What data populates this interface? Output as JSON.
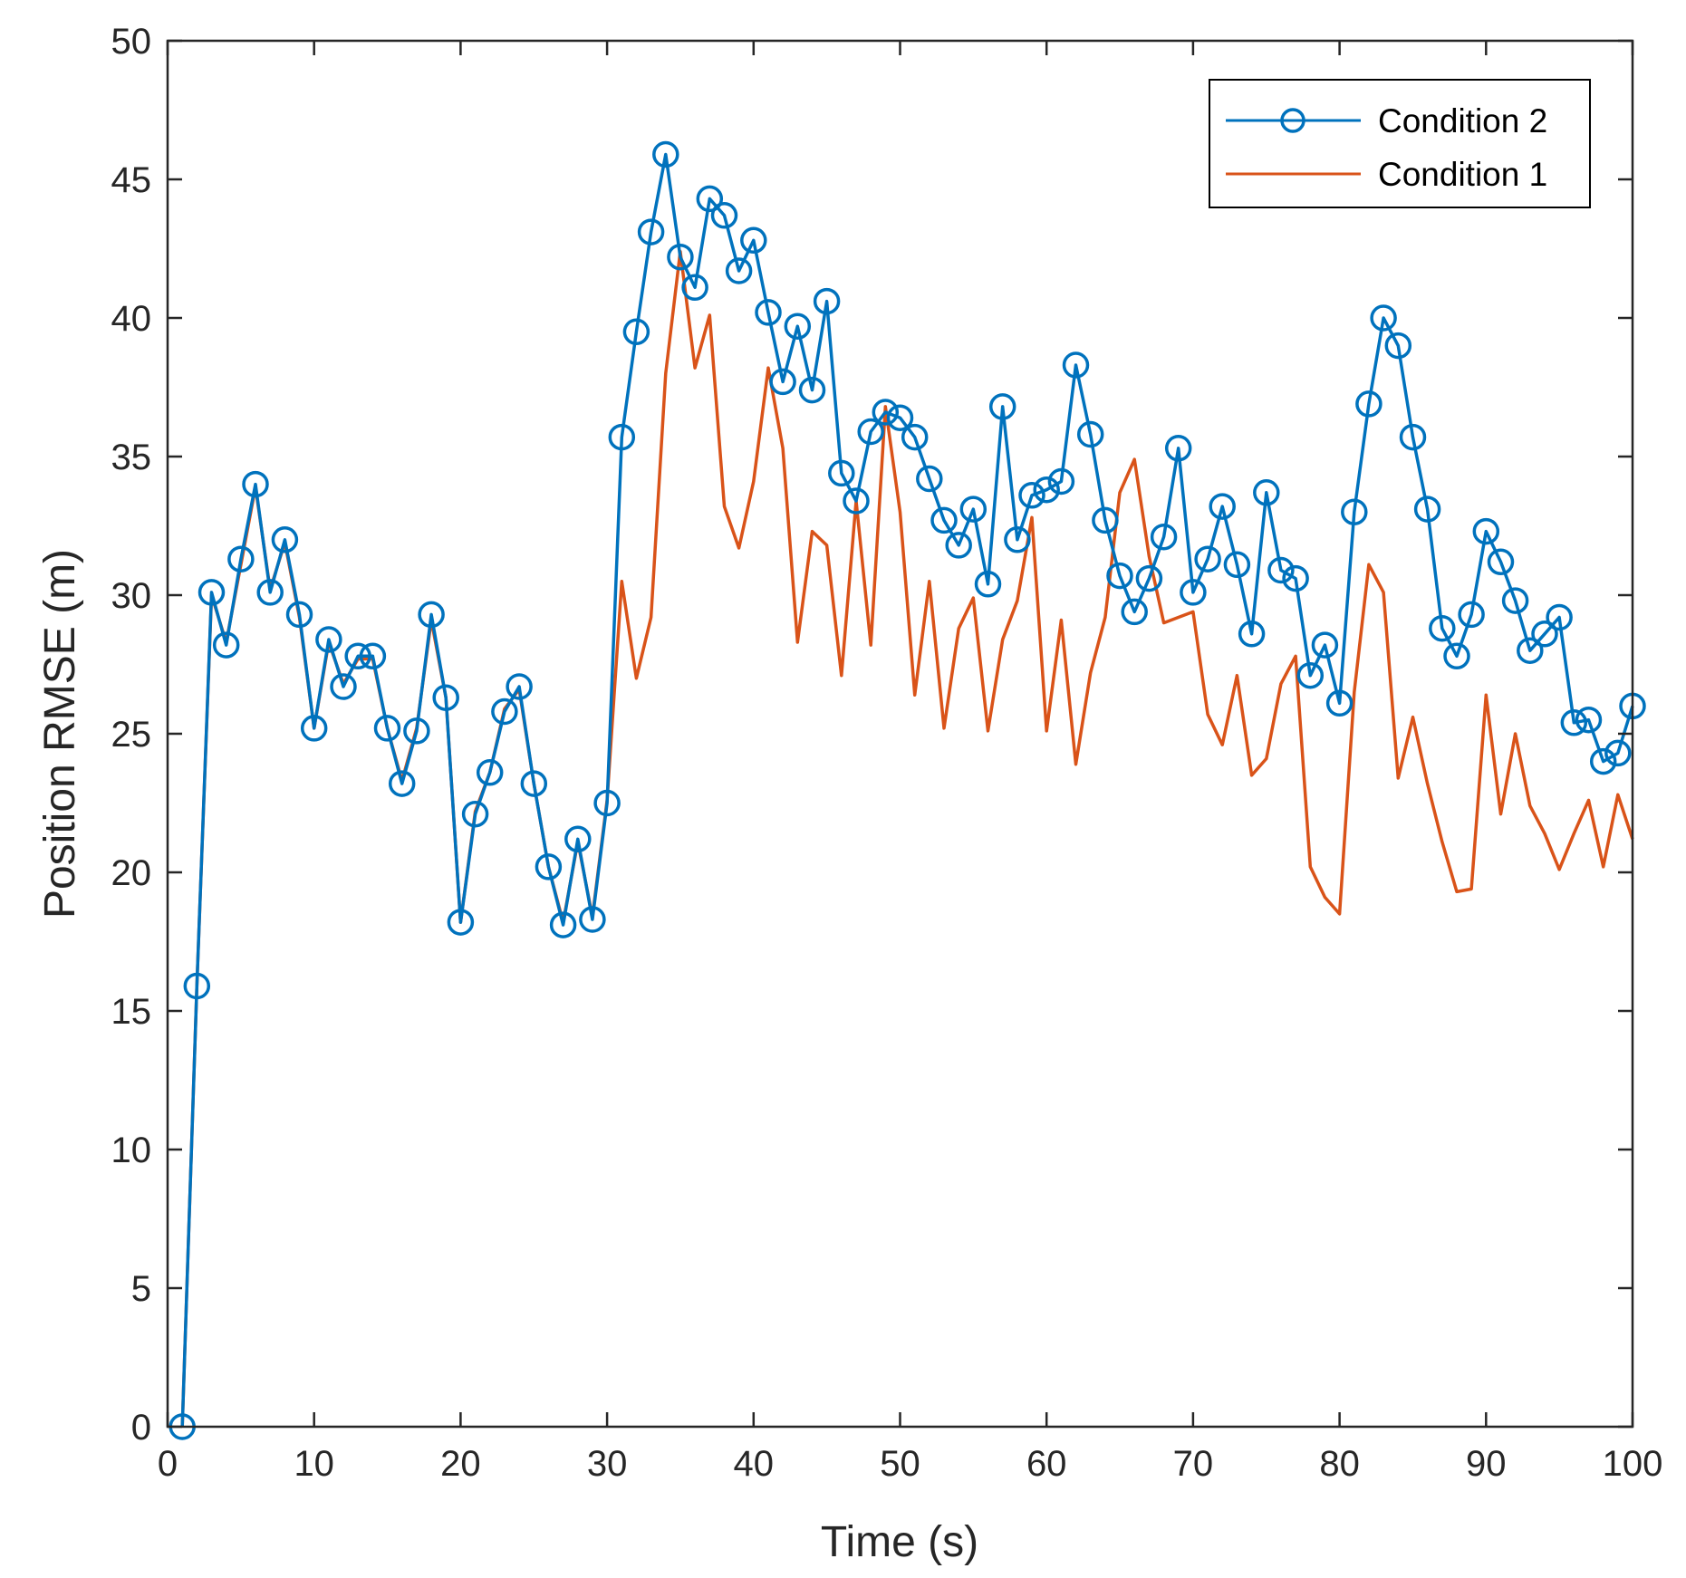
{
  "chart_data": {
    "type": "line",
    "title": "",
    "xlabel": "Time (s)",
    "ylabel": "Position RMSE (m)",
    "xlim": [
      0,
      100
    ],
    "ylim": [
      0,
      50
    ],
    "xticks": [
      0,
      10,
      20,
      30,
      40,
      50,
      60,
      70,
      80,
      90,
      100
    ],
    "yticks": [
      0,
      5,
      10,
      15,
      20,
      25,
      30,
      35,
      40,
      45,
      50
    ],
    "grid": false,
    "legend_position": "top-right",
    "x": [
      1,
      2,
      3,
      4,
      5,
      6,
      7,
      8,
      9,
      10,
      11,
      12,
      13,
      14,
      15,
      16,
      17,
      18,
      19,
      20,
      21,
      22,
      23,
      24,
      25,
      26,
      27,
      28,
      29,
      30,
      31,
      32,
      33,
      34,
      35,
      36,
      37,
      38,
      39,
      40,
      41,
      42,
      43,
      44,
      45,
      46,
      47,
      48,
      49,
      50,
      51,
      52,
      53,
      54,
      55,
      56,
      57,
      58,
      59,
      60,
      61,
      62,
      63,
      64,
      65,
      66,
      67,
      68,
      69,
      70,
      71,
      72,
      73,
      74,
      75,
      76,
      77,
      78,
      79,
      80,
      81,
      82,
      83,
      84,
      85,
      86,
      87,
      88,
      89,
      90,
      91,
      92,
      93,
      94,
      95,
      96,
      97,
      98,
      99,
      100
    ],
    "series": [
      {
        "name": "Condition 2",
        "color": "#0072BD",
        "marker": "circle",
        "values": [
          0.0,
          15.9,
          30.1,
          28.2,
          31.3,
          34.0,
          30.1,
          32.0,
          29.3,
          25.2,
          28.4,
          26.7,
          27.8,
          27.8,
          25.2,
          23.2,
          25.1,
          29.3,
          26.3,
          18.2,
          22.1,
          23.6,
          25.8,
          26.7,
          23.2,
          20.2,
          18.1,
          21.2,
          18.3,
          22.5,
          35.7,
          39.5,
          43.1,
          45.9,
          42.2,
          41.1,
          44.3,
          43.7,
          41.7,
          42.8,
          40.2,
          37.7,
          39.7,
          37.4,
          40.6,
          34.4,
          33.4,
          35.9,
          36.6,
          36.4,
          35.7,
          34.2,
          32.7,
          31.8,
          33.1,
          30.4,
          36.8,
          32.0,
          33.6,
          33.8,
          34.1,
          38.3,
          35.8,
          32.7,
          30.7,
          29.4,
          30.6,
          32.1,
          35.3,
          30.1,
          31.3,
          33.2,
          31.1,
          28.6,
          33.7,
          30.9,
          30.6,
          27.1,
          28.2,
          26.1,
          33.0,
          36.9,
          40.0,
          39.0,
          35.7,
          33.1,
          28.8,
          27.8,
          29.3,
          32.3,
          31.2,
          29.8,
          28.0,
          28.6,
          29.2,
          25.4,
          25.5,
          24.0,
          24.3,
          26.0
        ]
      },
      {
        "name": "Condition 1",
        "color": "#D95319",
        "marker": "none",
        "values": [
          0.0,
          15.9,
          30.0,
          28.3,
          31.1,
          33.9,
          30.2,
          31.9,
          29.2,
          25.2,
          28.3,
          26.8,
          27.7,
          27.7,
          25.2,
          23.3,
          25.2,
          29.1,
          26.3,
          18.2,
          22.2,
          23.6,
          25.9,
          26.6,
          23.2,
          20.2,
          18.2,
          21.1,
          18.4,
          22.6,
          30.5,
          27.0,
          29.2,
          38.0,
          42.4,
          38.2,
          40.1,
          33.2,
          31.7,
          34.1,
          38.2,
          35.3,
          28.3,
          32.3,
          31.8,
          27.1,
          33.4,
          28.2,
          36.8,
          33.0,
          26.4,
          30.5,
          25.2,
          28.8,
          29.9,
          25.1,
          28.4,
          29.8,
          32.8,
          25.1,
          29.1,
          23.9,
          27.2,
          29.2,
          33.7,
          34.9,
          31.4,
          29.0,
          29.2,
          29.4,
          25.7,
          24.6,
          27.1,
          23.5,
          24.1,
          26.8,
          27.8,
          20.2,
          19.1,
          18.5,
          26.5,
          31.1,
          30.1,
          23.4,
          25.6,
          23.2,
          21.1,
          19.3,
          19.4,
          26.4,
          22.1,
          25.0,
          22.4,
          21.4,
          20.1,
          21.4,
          22.6,
          20.2,
          22.8,
          21.2
        ]
      }
    ]
  }
}
